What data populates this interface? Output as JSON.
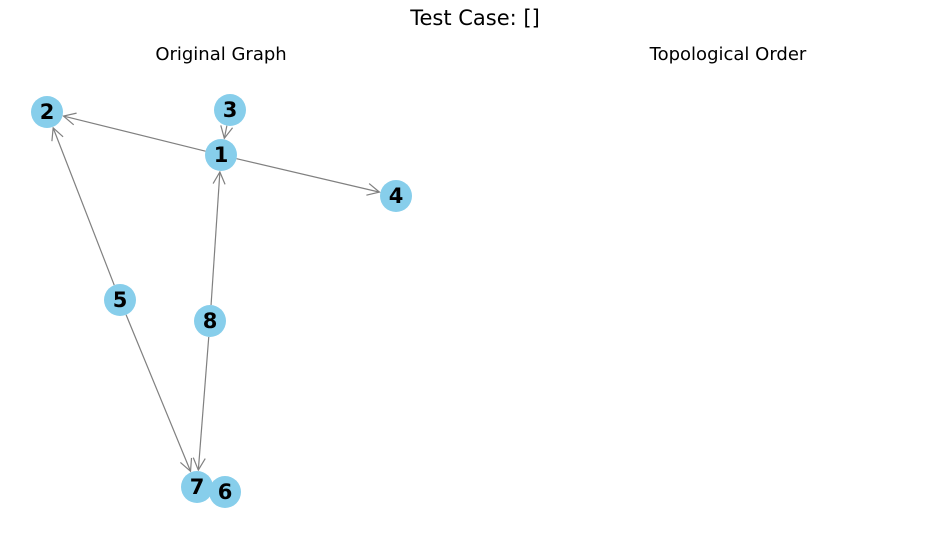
{
  "title": "Test Case: []",
  "panels": {
    "left": {
      "title": "Original Graph"
    },
    "right": {
      "title": "Topological Order"
    }
  },
  "colors": {
    "node_fill": "#87ceeb",
    "edge_stroke": "#808080",
    "label": "#000000"
  },
  "graph": {
    "nodes": [
      {
        "id": "1",
        "label": "1"
      },
      {
        "id": "2",
        "label": "2"
      },
      {
        "id": "3",
        "label": "3"
      },
      {
        "id": "4",
        "label": "4"
      },
      {
        "id": "5",
        "label": "5"
      },
      {
        "id": "6",
        "label": "6"
      },
      {
        "id": "7",
        "label": "7"
      },
      {
        "id": "8",
        "label": "8"
      }
    ],
    "edges": [
      {
        "from": "3",
        "to": "1"
      },
      {
        "from": "1",
        "to": "2"
      },
      {
        "from": "1",
        "to": "4"
      },
      {
        "from": "5",
        "to": "2"
      },
      {
        "from": "5",
        "to": "7"
      },
      {
        "from": "8",
        "to": "1"
      },
      {
        "from": "8",
        "to": "7"
      }
    ]
  },
  "topological_order": []
}
